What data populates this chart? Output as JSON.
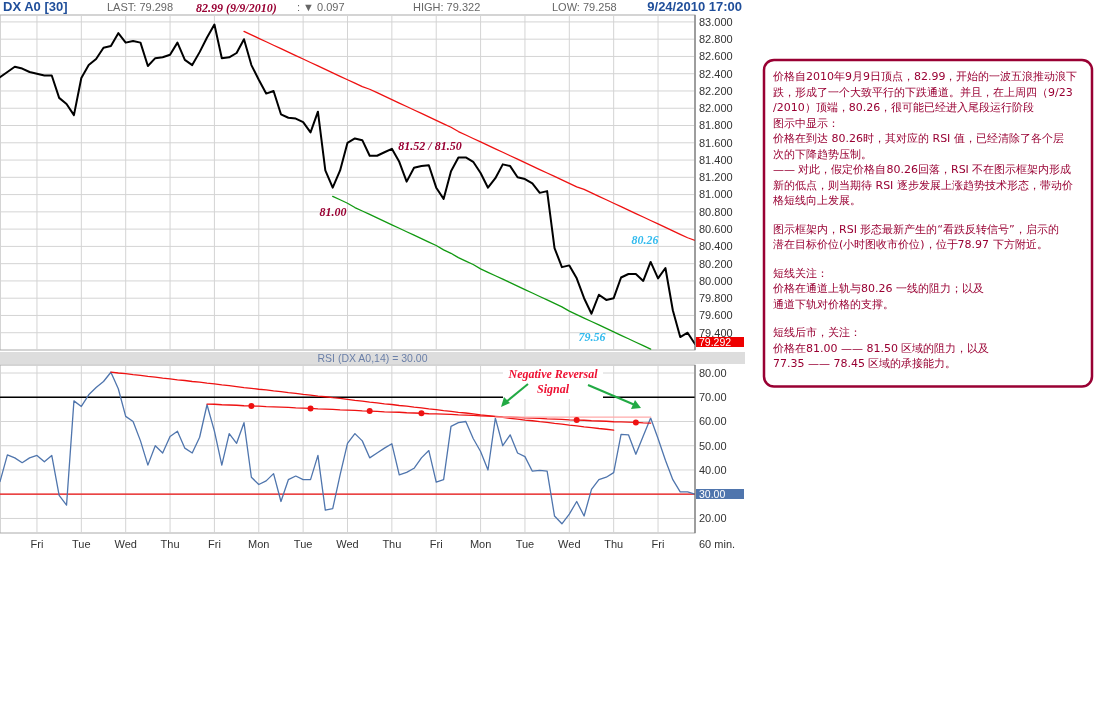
{
  "chart_data": [
    {
      "type": "line",
      "title": "DX A0 [30]",
      "ylim": [
        79.2,
        83.08
      ],
      "tick_labels": "y",
      "grid": true,
      "categories": [
        null,
        null,
        null,
        null,
        null,
        "Fri",
        null,
        null,
        null,
        null,
        null,
        "Tue",
        null,
        null,
        null,
        null,
        null,
        "Wed",
        null,
        null,
        null,
        null,
        null,
        "Thu",
        null,
        null,
        null,
        null,
        null,
        "Fri",
        null,
        null,
        null,
        null,
        null,
        "Mon",
        null,
        null,
        null,
        null,
        null,
        "Tue",
        null,
        null,
        null,
        null,
        null,
        "Wed",
        null,
        null,
        null,
        null,
        null,
        "Thu",
        null,
        null,
        null,
        null,
        null,
        "Fri",
        null,
        null,
        null,
        null,
        null,
        "Mon",
        null,
        null,
        null,
        null,
        null,
        "Tue",
        null,
        null,
        null,
        null,
        null,
        "Wed",
        null,
        null,
        null,
        null,
        null,
        "Thu",
        null,
        null,
        null,
        null,
        null,
        "Fri",
        null,
        null,
        null,
        null,
        null
      ],
      "yticks": [
        {
          "value": 79.4,
          "label": "79.400"
        },
        {
          "value": 79.6,
          "label": "79.600"
        },
        {
          "value": 79.8,
          "label": "79.800"
        },
        {
          "value": 80,
          "label": "80.000"
        },
        {
          "value": 80.2,
          "label": "80.200"
        },
        {
          "value": 80.4,
          "label": "80.400"
        },
        {
          "value": 80.6,
          "label": "80.600"
        },
        {
          "value": 80.8,
          "label": "80.800"
        },
        {
          "value": 81,
          "label": "81.000"
        },
        {
          "value": 81.2,
          "label": "81.200"
        },
        {
          "value": 81.4,
          "label": "81.400"
        },
        {
          "value": 81.6,
          "label": "81.600"
        },
        {
          "value": 81.8,
          "label": "81.800"
        },
        {
          "value": 82,
          "label": "82.000"
        },
        {
          "value": 82.2,
          "label": "82.200"
        },
        {
          "value": 82.4,
          "label": "82.400"
        },
        {
          "value": 82.6,
          "label": "82.600"
        },
        {
          "value": 82.8,
          "label": "82.800"
        },
        {
          "value": 83,
          "label": "83.000"
        }
      ],
      "series": [
        {
          "type": "line",
          "color": "#000000",
          "values": [
            82.36,
            82.42,
            82.48,
            82.46,
            82.42,
            82.4,
            82.38,
            82.38,
            82.12,
            82.05,
            81.92,
            82.35,
            82.5,
            82.57,
            82.7,
            82.72,
            82.87,
            82.76,
            82.78,
            82.76,
            82.49,
            82.58,
            82.59,
            82.62,
            82.76,
            82.56,
            82.5,
            82.65,
            82.82,
            82.97,
            82.58,
            82.59,
            82.64,
            82.8,
            82.5,
            82.33,
            82.17,
            82.2,
            81.93,
            81.89,
            81.88,
            81.84,
            81.72,
            81.96,
            81.28,
            81.08,
            81.28,
            81.6,
            81.65,
            81.63,
            81.45,
            81.45,
            81.49,
            81.53,
            81.38,
            81.15,
            81.31,
            81.33,
            81.34,
            81.08,
            80.95,
            81.27,
            81.43,
            81.43,
            81.38,
            81.25,
            81.08,
            81.19,
            81.35,
            81.33,
            81.2,
            81.18,
            81.13,
            81.02,
            81.04,
            80.38,
            80.16,
            80.18,
            80.03,
            79.8,
            79.62,
            79.84,
            79.78,
            79.8,
            80.04,
            80.08,
            80.08,
            80.0,
            80.22,
            80.03,
            80.15,
            79.66,
            79.35,
            79.4,
            79.27
          ]
        },
        {
          "type": "line",
          "color": "#ee1111",
          "values": [
            null,
            null,
            null,
            null,
            null,
            null,
            null,
            null,
            null,
            null,
            null,
            null,
            null,
            null,
            null,
            null,
            null,
            null,
            null,
            null,
            null,
            null,
            null,
            null,
            null,
            null,
            null,
            null,
            null,
            null,
            null,
            null,
            null,
            82.89,
            82.85,
            82.81,
            82.77,
            82.73,
            82.69,
            82.65,
            82.61,
            82.57,
            82.53,
            82.49,
            82.45,
            82.41,
            82.37,
            82.33,
            82.29,
            82.25,
            82.22,
            82.18,
            82.14,
            82.1,
            82.06,
            82.02,
            81.98,
            81.94,
            81.9,
            81.86,
            81.82,
            81.78,
            81.73,
            81.69,
            81.65,
            81.61,
            81.57,
            81.53,
            81.49,
            81.45,
            81.41,
            81.37,
            81.33,
            81.29,
            81.25,
            81.21,
            81.17,
            81.13,
            81.09,
            81.06,
            81.02,
            80.98,
            80.94,
            80.9,
            80.86,
            80.82,
            80.78,
            80.74,
            80.7,
            80.66,
            80.62,
            80.58,
            80.54,
            80.5,
            80.47
          ]
        },
        {
          "type": "line",
          "color": "#119911",
          "values": [
            null,
            null,
            null,
            null,
            null,
            null,
            null,
            null,
            null,
            null,
            null,
            null,
            null,
            null,
            null,
            null,
            null,
            null,
            null,
            null,
            null,
            null,
            null,
            null,
            null,
            null,
            null,
            null,
            null,
            null,
            null,
            null,
            null,
            null,
            null,
            null,
            null,
            null,
            null,
            null,
            null,
            null,
            null,
            null,
            null,
            80.98,
            80.94,
            80.9,
            80.85,
            80.81,
            80.77,
            80.73,
            80.69,
            80.65,
            80.61,
            80.57,
            80.53,
            80.49,
            80.45,
            80.41,
            80.36,
            80.32,
            80.27,
            80.23,
            80.19,
            80.14,
            80.1,
            80.06,
            80.02,
            79.98,
            79.94,
            79.9,
            79.86,
            79.82,
            79.78,
            79.74,
            79.7,
            79.65,
            79.61,
            79.57,
            79.53,
            79.49,
            79.45,
            79.41,
            79.37,
            79.33,
            79.29,
            79.25,
            79.21,
            null,
            null,
            null,
            null,
            null,
            null
          ]
        }
      ],
      "annotations": [
        "LAST: 79.298",
        ": ▼ 0.097",
        "HIGH: 79.322",
        "LOW: 79.258",
        "9/24/2010 17:00",
        "82.99 (9/9/2010)",
        "81.00",
        "81.52 / 81.50",
        "80.26",
        "79.56",
        "79.292"
      ]
    },
    {
      "type": "line",
      "title": "RSI (DX A0,14) = 30.00",
      "xlabel": "60 min.",
      "ylim": [
        14,
        83.3
      ],
      "grid": true,
      "categories": [
        null,
        null,
        null,
        null,
        null,
        "Fri",
        null,
        null,
        null,
        null,
        null,
        "Tue",
        null,
        null,
        null,
        null,
        null,
        "Wed",
        null,
        null,
        null,
        null,
        null,
        "Thu",
        null,
        null,
        null,
        null,
        null,
        "Fri",
        null,
        null,
        null,
        null,
        null,
        "Mon",
        null,
        null,
        null,
        null,
        null,
        "Tue",
        null,
        null,
        null,
        null,
        null,
        "Wed",
        null,
        null,
        null,
        null,
        null,
        "Thu",
        null,
        null,
        null,
        null,
        null,
        "Fri",
        null,
        null,
        null,
        null,
        null,
        "Mon",
        null,
        null,
        null,
        null,
        null,
        "Tue",
        null,
        null,
        null,
        null,
        null,
        "Wed",
        null,
        null,
        null,
        null,
        null,
        "Thu",
        null,
        null,
        null,
        null,
        null,
        "Fri",
        null,
        null,
        null,
        null,
        null
      ],
      "yticks": [
        {
          "value": 20,
          "label": "20.00"
        },
        {
          "value": 30,
          "label": null
        },
        {
          "value": 40,
          "label": "40.00"
        },
        {
          "value": 50,
          "label": "50.00"
        },
        {
          "value": 60,
          "label": "60.00"
        },
        {
          "value": 70,
          "label": "70.00"
        },
        {
          "value": 80,
          "label": "80.00"
        }
      ],
      "ref_lines": [
        {
          "axis": "y",
          "value": 70,
          "color": "#000000"
        },
        {
          "axis": "y",
          "value": 30,
          "color": "#ee1111"
        }
      ],
      "series": [
        {
          "type": "line",
          "color": "#4f75ad",
          "values": [
            35.2,
            46.2,
            45,
            43,
            45,
            46,
            43.4,
            46,
            29.5,
            25.5,
            68.5,
            66.2,
            71,
            74,
            76.5,
            80.3,
            73.5,
            62.1,
            60,
            52,
            42,
            50,
            47,
            53.8,
            56,
            49,
            47,
            53.5,
            66.9,
            56,
            42,
            55,
            51,
            59.5,
            37,
            34,
            35.5,
            38.5,
            27,
            36,
            37.5,
            36,
            36,
            46,
            23.4,
            24.1,
            38,
            51,
            55,
            52,
            45,
            47,
            49,
            50.8,
            38,
            39,
            40.7,
            45,
            48,
            35,
            36,
            58,
            59.5,
            60,
            53,
            47.6,
            40,
            61.4,
            50,
            54.5,
            47,
            45.5,
            39.5,
            39.8,
            39.5,
            21,
            17.8,
            21.8,
            27,
            21,
            32,
            36,
            37,
            38.9,
            54.7,
            54.5,
            46.5,
            54,
            61.4,
            53,
            44,
            36,
            31,
            31,
            30
          ]
        },
        {
          "type": "line",
          "color": "#ee1111",
          "values": [
            null,
            null,
            null,
            null,
            null,
            null,
            null,
            null,
            null,
            null,
            null,
            null,
            null,
            null,
            null,
            80.4,
            80.0,
            79.7,
            79.3,
            79.0,
            78.6,
            78.3,
            77.9,
            77.6,
            77.2,
            76.9,
            76.5,
            76.2,
            75.8,
            75.5,
            75.1,
            74.8,
            74.4,
            74.0,
            73.7,
            73.3,
            73.0,
            72.6,
            72.3,
            71.9,
            71.6,
            71.2,
            70.9,
            70.5,
            70.2,
            69.8,
            69.5,
            69.1,
            68.7,
            68.4,
            68.0,
            67.7,
            67.3,
            67.0,
            66.6,
            66.3,
            65.9,
            65.6,
            65.2,
            64.9,
            64.5,
            64.2,
            63.8,
            63.5,
            63.1,
            62.7,
            62.4,
            62.0,
            61.7,
            61.3,
            61.0,
            60.6,
            60.3,
            59.9,
            59.6,
            59.2,
            58.9,
            58.5,
            58.2,
            57.8,
            57.5,
            57.1,
            56.8,
            56.4,
            null,
            null,
            null,
            null,
            null,
            null,
            null,
            null,
            null,
            null,
            null
          ]
        },
        {
          "type": "line",
          "color": "#ee1111",
          "values": [
            null,
            null,
            null,
            null,
            null,
            null,
            null,
            null,
            null,
            null,
            null,
            null,
            null,
            null,
            null,
            null,
            null,
            null,
            null,
            null,
            null,
            null,
            null,
            null,
            null,
            null,
            null,
            null,
            67.2,
            67.1,
            66.9,
            66.8,
            66.7,
            66.5,
            66.4,
            66.3,
            66.1,
            66.0,
            65.9,
            65.8,
            65.6,
            65.5,
            65.4,
            65.2,
            65.1,
            65.0,
            64.8,
            64.7,
            64.6,
            64.4,
            64.3,
            64.2,
            64.0,
            63.9,
            63.8,
            63.6,
            63.5,
            63.4,
            63.2,
            63.1,
            63.0,
            62.9,
            62.7,
            62.6,
            62.5,
            62.3,
            62.2,
            62.1,
            61.9,
            61.8,
            61.7,
            61.5,
            61.4,
            61.3,
            61.1,
            61.0,
            60.9,
            60.7,
            60.6,
            60.5,
            60.3,
            60.2,
            60.1,
            59.9,
            59.8,
            59.7,
            59.6,
            59.4,
            59.3,
            null,
            null,
            null,
            null,
            null,
            null
          ]
        },
        {
          "type": "line",
          "color": "#ffaaaa",
          "values": [
            null,
            null,
            null,
            null,
            null,
            null,
            null,
            null,
            null,
            null,
            null,
            null,
            null,
            null,
            null,
            null,
            null,
            null,
            null,
            null,
            null,
            null,
            null,
            null,
            null,
            null,
            null,
            null,
            null,
            null,
            null,
            null,
            null,
            null,
            null,
            null,
            null,
            null,
            null,
            null,
            null,
            null,
            null,
            null,
            null,
            null,
            null,
            null,
            null,
            null,
            null,
            null,
            null,
            null,
            null,
            null,
            null,
            null,
            null,
            null,
            null,
            null,
            null,
            null,
            null,
            null,
            null,
            61.8,
            61.8,
            61.8,
            61.8,
            61.8,
            61.8,
            61.8,
            61.8,
            61.8,
            61.8,
            61.8,
            61.8,
            61.8,
            61.8,
            61.8,
            61.8,
            61.8,
            61.8,
            61.8,
            61.8,
            61.8,
            61.8,
            null,
            null,
            null,
            null,
            null,
            null
          ]
        },
        {
          "type": "scatter",
          "color": "#ee1111",
          "marker": "circle",
          "values": [
            null,
            null,
            null,
            null,
            null,
            null,
            null,
            null,
            null,
            null,
            null,
            null,
            null,
            null,
            null,
            null,
            null,
            null,
            null,
            null,
            null,
            null,
            null,
            null,
            null,
            null,
            null,
            null,
            null,
            null,
            null,
            null,
            null,
            null,
            66.4,
            null,
            null,
            null,
            null,
            null,
            null,
            null,
            65.4,
            null,
            null,
            null,
            null,
            null,
            null,
            null,
            64.3,
            null,
            null,
            null,
            null,
            null,
            null,
            63.4,
            null,
            null,
            null,
            null,
            null,
            null,
            null,
            null,
            null,
            null,
            null,
            null,
            null,
            null,
            null,
            null,
            null,
            null,
            null,
            null,
            60.6,
            null,
            null,
            null,
            null,
            null,
            null,
            null,
            59.6,
            null,
            null,
            null,
            null,
            null,
            null,
            null,
            null
          ]
        }
      ],
      "annotations": [
        "Negative Reversal Signal",
        "30.00"
      ]
    },
    {
      "type": "other",
      "annotations": [
        "价格自2010年9月9日顶点，82.99，开始的一波五浪推动浪下跌，形成了一个大致平行的下跌通道。并且，在上周四（9/23/2010）顶端，80.26，很可能已经进入尾段运行阶段",
        "图示中显示：",
        "价格在到达 80.26时，其对应的 RSI 值，已经清除了各个层次的下降趋势压制。",
        "—— 对此，假定价格自80.26回落，RSI 不在图示框架内形成新的低点，则当期待 RSI 逐步发展上涨趋势技术形态，带动价格短线向上发展。",
        "图示框架内，RSI 形态最新产生的“看跌反转信号”，启示的潜在目标价位(小时图收市价位)，位于78.97 下方附近。",
        "短线关注：",
        "价格在通道上轨与80.26 一线的阻力；以及",
        "通道下轨对价格的支撑。",
        "短线后市，关注：",
        "价格在81.00 —— 81.50 区域的阻力，以及",
        "77.35 —— 78.45 区域的承接能力。"
      ]
    }
  ]
}
